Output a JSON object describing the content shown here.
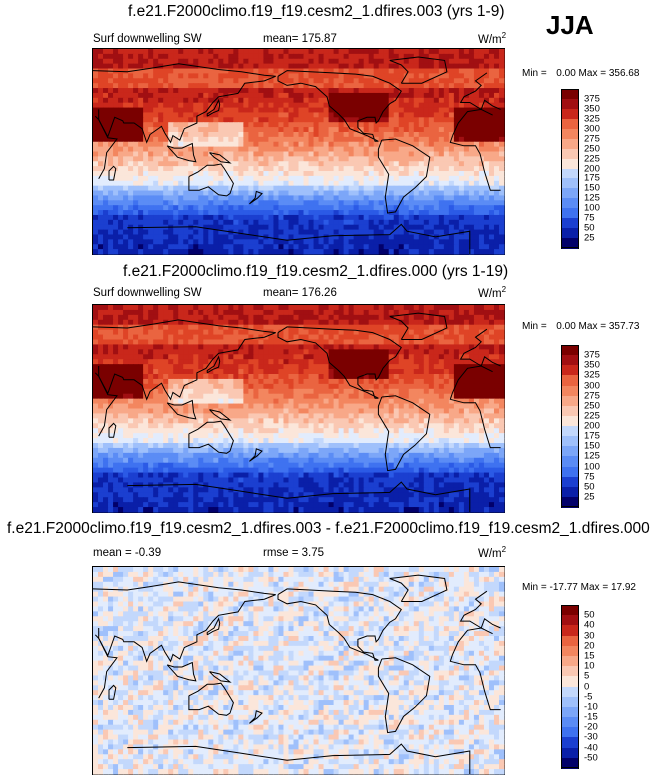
{
  "season": "JJA",
  "colors": {
    "abs_scale": [
      "#02006a",
      "#0a1fa8",
      "#1b3fd0",
      "#2b5ae6",
      "#3f72f0",
      "#5b8cf5",
      "#7ca6f8",
      "#9fc0fb",
      "#c3d8fc",
      "#e2ecfd",
      "#fbe6da",
      "#fac8b3",
      "#f8a888",
      "#f3865f",
      "#ea6440",
      "#df4426",
      "#c9271b",
      "#a10f12",
      "#7a0000"
    ],
    "diff_scale": [
      "#02006a",
      "#0a1fa8",
      "#1b3fd0",
      "#2b5ae6",
      "#3f72f0",
      "#5b8cf5",
      "#7ca6f8",
      "#9fc0fb",
      "#c3d8fc",
      "#e2ecfd",
      "#fbe6da",
      "#fac8b3",
      "#f8a888",
      "#f3865f",
      "#ea6440",
      "#df4426",
      "#c9271b",
      "#a10f12",
      "#7a0000"
    ]
  },
  "chart_data": [
    {
      "type": "heatmap",
      "title": "f.e21.F2000climo.f19_f19.cesm2_1.dfires.003 (yrs 1-9)",
      "left_label": "Surf downwelling SW",
      "mean_label": "mean= 175.87",
      "units": "W/m",
      "units_exp": "2",
      "min_label": "Min =",
      "min_value": "0.00",
      "max_label": "Max =",
      "max_value": "356.68",
      "min": 0.0,
      "max": 356.68,
      "mean": 175.87,
      "colorbar_levels": [
        "375",
        "350",
        "325",
        "300",
        "275",
        "250",
        "225",
        "200",
        "175",
        "150",
        "125",
        "100",
        "75",
        "50",
        "25"
      ]
    },
    {
      "type": "heatmap",
      "title": "f.e21.F2000climo.f19_f19.cesm2_1.dfires.000 (yrs 1-19)",
      "left_label": "Surf downwelling SW",
      "mean_label": "mean= 176.26",
      "units": "W/m",
      "units_exp": "2",
      "min_label": "Min =",
      "min_value": "0.00",
      "max_label": "Max =",
      "max_value": "357.73",
      "min": 0.0,
      "max": 357.73,
      "mean": 176.26,
      "colorbar_levels": [
        "375",
        "350",
        "325",
        "300",
        "275",
        "250",
        "225",
        "200",
        "175",
        "150",
        "125",
        "100",
        "75",
        "50",
        "25"
      ]
    },
    {
      "type": "heatmap",
      "title": "f.e21.F2000climo.f19_f19.cesm2_1.dfires.003 - f.e21.F2000climo.f19_f19.cesm2_1.dfires.000",
      "left_label": "mean =  -0.39",
      "mean_label": "rmse =   3.75",
      "units": "W/m",
      "units_exp": "2",
      "min_label": "Min =",
      "min_value": "-17.77",
      "max_label": "Max =",
      "max_value": "17.92",
      "min": -17.77,
      "max": 17.92,
      "mean": -0.39,
      "rmse": 3.75,
      "colorbar_levels": [
        "50",
        "40",
        "30",
        "20",
        "15",
        "10",
        "5",
        "0",
        "-5",
        "-10",
        "-15",
        "-20",
        "-30",
        "-40",
        "-50"
      ]
    }
  ]
}
